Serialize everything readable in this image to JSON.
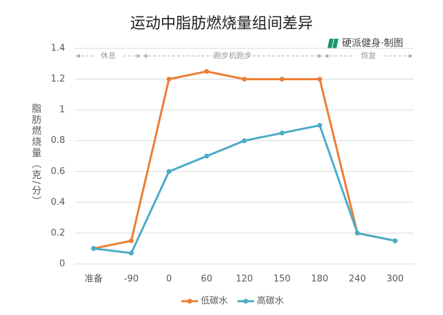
{
  "chart_data": {
    "type": "line",
    "title": "运动中脂肪燃烧量组间差异",
    "source": "硬派健身·制图",
    "y_label": "脂肪燃烧量（克/分）",
    "annotations": [
      "休息",
      "跑步机跑步",
      "恢复"
    ],
    "categories": [
      "准备",
      "-90",
      "0",
      "60",
      "120",
      "150",
      "180",
      "240",
      "300"
    ],
    "series": [
      {
        "name": "低碳水",
        "color": "#ed7d31",
        "values": [
          0.1,
          0.15,
          1.2,
          1.25,
          1.2,
          1.2,
          1.2,
          0.2,
          0.15
        ]
      },
      {
        "name": "高碳水",
        "color": "#4bacc6",
        "values": [
          0.1,
          0.07,
          0.6,
          0.7,
          0.8,
          0.85,
          0.9,
          0.2,
          0.15
        ]
      }
    ],
    "ylim": [
      0,
      1.4
    ],
    "yticks": [
      0,
      0.2,
      0.4,
      0.6,
      0.8,
      1,
      1.2,
      1.4
    ],
    "grid": true,
    "legend": "bottom"
  }
}
